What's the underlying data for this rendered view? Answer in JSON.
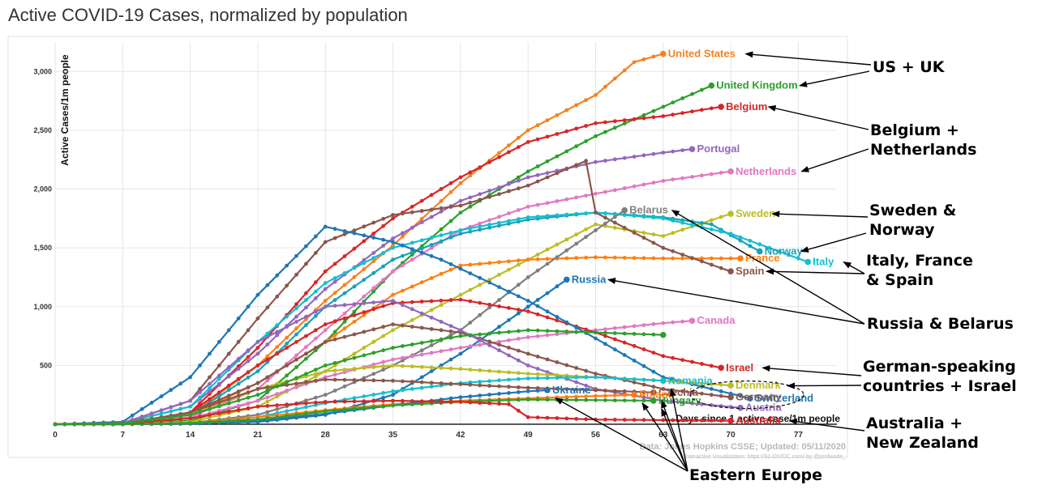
{
  "page": {
    "title": "Active COVID-19 Cases, normalized by population"
  },
  "annotations": {
    "groups": [
      {
        "id": "us-uk",
        "label": "US + UK",
        "targets": [
          "United States",
          "United Kingdom"
        ]
      },
      {
        "id": "belgium-netherlands",
        "label": "Belgium +\nNetherlands",
        "targets": [
          "Belgium",
          "Netherlands"
        ]
      },
      {
        "id": "sweden-norway",
        "label": "Sweden &\nNorway",
        "targets": [
          "Sweden",
          "Norway"
        ]
      },
      {
        "id": "italy-france-spain",
        "label": "Italy, France\n& Spain",
        "targets": [
          "Italy",
          "Spain"
        ]
      },
      {
        "id": "russia-belarus",
        "label": "Russia & Belarus",
        "targets": [
          "Belarus",
          "Russia"
        ]
      },
      {
        "id": "german-speaking",
        "label": "German-speaking\ncountries + Israel",
        "targets": [
          "Israel",
          "German-speaking"
        ]
      },
      {
        "id": "australia-nz",
        "label": "Australia +\nNew Zealand",
        "targets": [
          "Australia"
        ]
      },
      {
        "id": "eastern-europe",
        "label": "Eastern Europe",
        "targets": [
          "Ukraine",
          "Poland",
          "Hungary",
          "Romania",
          "Czechia"
        ]
      }
    ]
  },
  "chart_data": {
    "type": "line",
    "title": "Active COVID-19 Cases, normalized by population",
    "xlabel": "Days since 1 active case/1m people",
    "ylabel": "Active Cases/1m people",
    "xlim": [
      0,
      81
    ],
    "ylim": [
      0,
      3250
    ],
    "xticks": [
      0,
      7,
      14,
      21,
      28,
      35,
      42,
      49,
      56,
      63,
      70,
      77
    ],
    "yticks": [
      500,
      1000,
      1500,
      2000,
      2500,
      3000
    ],
    "ytick_labels": [
      "500",
      "1,000",
      "1,500",
      "2,000",
      "2,500",
      "3,000"
    ],
    "grid": true,
    "credits": [
      "Data: Johns Hopkins CSSE; Updated: 05/11/2020",
      "Interactive Visualization: https://91-DIVOC.com/ by @profwade_"
    ],
    "series": [
      {
        "name": "United States",
        "color": "#f58220",
        "x": [
          0,
          7,
          14,
          21,
          28,
          35,
          42,
          49,
          56,
          60,
          63
        ],
        "y": [
          0,
          10,
          80,
          500,
          1050,
          1520,
          2050,
          2500,
          2800,
          3080,
          3150
        ]
      },
      {
        "name": "United Kingdom",
        "color": "#2ca02c",
        "x": [
          0,
          7,
          14,
          21,
          28,
          35,
          42,
          49,
          56,
          63,
          68
        ],
        "y": [
          0,
          5,
          30,
          200,
          700,
          1300,
          1800,
          2150,
          2450,
          2700,
          2880
        ]
      },
      {
        "name": "Belgium",
        "color": "#d62728",
        "x": [
          0,
          7,
          14,
          21,
          28,
          35,
          42,
          49,
          56,
          63,
          69
        ],
        "y": [
          0,
          5,
          100,
          650,
          1300,
          1750,
          2100,
          2400,
          2560,
          2620,
          2700
        ]
      },
      {
        "name": "Portugal",
        "color": "#9467bd",
        "x": [
          0,
          7,
          14,
          21,
          28,
          35,
          42,
          49,
          56,
          63,
          66
        ],
        "y": [
          0,
          10,
          150,
          600,
          1150,
          1580,
          1900,
          2100,
          2230,
          2310,
          2340
        ]
      },
      {
        "name": "Netherlands",
        "color": "#e377c2",
        "x": [
          0,
          7,
          14,
          21,
          28,
          35,
          42,
          49,
          56,
          63,
          70
        ],
        "y": [
          0,
          5,
          60,
          300,
          800,
          1300,
          1650,
          1850,
          1960,
          2070,
          2150
        ]
      },
      {
        "name": "Sweden",
        "color": "#bcbd22",
        "x": [
          0,
          7,
          14,
          21,
          28,
          35,
          42,
          49,
          56,
          63,
          70
        ],
        "y": [
          0,
          0,
          20,
          150,
          450,
          800,
          1100,
          1400,
          1700,
          1600,
          1790
        ]
      },
      {
        "name": "Norway",
        "color": "#17a2b8",
        "x": [
          0,
          7,
          14,
          21,
          28,
          35,
          42,
          49,
          56,
          63,
          68,
          73
        ],
        "y": [
          0,
          5,
          80,
          450,
          1000,
          1400,
          1620,
          1740,
          1800,
          1760,
          1700,
          1470
        ]
      },
      {
        "name": "Italy",
        "color": "#17becf",
        "x": [
          0,
          7,
          14,
          21,
          28,
          35,
          42,
          49,
          56,
          63,
          70,
          78
        ],
        "y": [
          0,
          10,
          150,
          700,
          1200,
          1500,
          1650,
          1760,
          1800,
          1750,
          1620,
          1380
        ]
      },
      {
        "name": "France",
        "color": "#ff7f0e",
        "x": [
          0,
          7,
          14,
          21,
          28,
          35,
          42,
          49,
          56,
          63,
          71
        ],
        "y": [
          0,
          10,
          80,
          350,
          700,
          1100,
          1350,
          1400,
          1420,
          1410,
          1410
        ]
      },
      {
        "name": "Spain",
        "color": "#8c564b",
        "x": [
          0,
          7,
          14,
          21,
          28,
          35,
          42,
          49,
          55,
          56,
          63,
          70
        ],
        "y": [
          0,
          10,
          200,
          900,
          1550,
          1780,
          1860,
          2030,
          2240,
          1800,
          1500,
          1300
        ]
      },
      {
        "name": "Belarus",
        "color": "#7f7f7f",
        "x": [
          0,
          7,
          14,
          21,
          28,
          35,
          42,
          49,
          56,
          59
        ],
        "y": [
          0,
          0,
          10,
          80,
          250,
          500,
          800,
          1250,
          1650,
          1820
        ]
      },
      {
        "name": "Russia",
        "color": "#1f77b4",
        "x": [
          0,
          7,
          14,
          21,
          28,
          35,
          42,
          49,
          53
        ],
        "y": [
          0,
          0,
          5,
          20,
          80,
          250,
          600,
          1000,
          1230
        ]
      },
      {
        "name": "Canada",
        "color": "#e377c2",
        "x": [
          0,
          7,
          14,
          21,
          28,
          35,
          42,
          49,
          56,
          63,
          66
        ],
        "y": [
          0,
          5,
          50,
          200,
          400,
          550,
          650,
          740,
          800,
          860,
          880
        ]
      },
      {
        "name": "Israel",
        "color": "#d62728",
        "x": [
          0,
          7,
          14,
          21,
          28,
          35,
          42,
          49,
          56,
          63,
          69
        ],
        "y": [
          0,
          5,
          100,
          500,
          850,
          1030,
          1060,
          960,
          780,
          580,
          480
        ]
      },
      {
        "name": "Switzerland",
        "color": "#1f77b4",
        "x": [
          0,
          7,
          14,
          21,
          28,
          35,
          40,
          49,
          56,
          63,
          72
        ],
        "y": [
          0,
          20,
          400,
          1100,
          1680,
          1550,
          1400,
          1050,
          730,
          400,
          220
        ]
      },
      {
        "name": "Germany",
        "color": "#8c564b",
        "x": [
          0,
          7,
          14,
          21,
          28,
          35,
          42,
          49,
          56,
          63,
          70
        ],
        "y": [
          0,
          5,
          100,
          350,
          700,
          850,
          780,
          600,
          430,
          300,
          230
        ]
      },
      {
        "name": "Austria",
        "color": "#9467bd",
        "x": [
          0,
          7,
          14,
          21,
          28,
          35,
          42,
          49,
          56,
          63,
          71
        ],
        "y": [
          0,
          10,
          200,
          700,
          1000,
          1050,
          800,
          500,
          300,
          200,
          140
        ]
      },
      {
        "name": "Denmark",
        "color": "#bcbd22",
        "x": [
          0,
          7,
          14,
          21,
          28,
          35,
          42,
          49,
          56,
          63,
          70
        ],
        "y": [
          0,
          5,
          80,
          300,
          450,
          500,
          470,
          430,
          400,
          370,
          330
        ]
      },
      {
        "name": "Romania",
        "color": "#17becf",
        "x": [
          0,
          7,
          14,
          21,
          28,
          35,
          42,
          49,
          56,
          63
        ],
        "y": [
          0,
          0,
          10,
          60,
          180,
          280,
          350,
          390,
          400,
          370
        ]
      },
      {
        "name": "Czechia",
        "color": "#8c564b",
        "x": [
          0,
          7,
          14,
          21,
          28,
          35,
          42,
          49,
          56,
          62
        ],
        "y": [
          0,
          5,
          100,
          300,
          380,
          370,
          340,
          310,
          290,
          270
        ]
      },
      {
        "name": "Poland",
        "color": "#ff7f0e",
        "x": [
          0,
          7,
          14,
          21,
          28,
          35,
          42,
          49,
          56,
          60
        ],
        "y": [
          0,
          0,
          10,
          60,
          120,
          170,
          200,
          220,
          240,
          250
        ]
      },
      {
        "name": "Ukraine",
        "color": "#1f77b4",
        "x": [
          0,
          7,
          14,
          21,
          28,
          35,
          42,
          49,
          51
        ],
        "y": [
          0,
          0,
          5,
          30,
          90,
          160,
          230,
          280,
          290
        ]
      },
      {
        "name": "Hungary",
        "color": "#2ca02c",
        "x": [
          0,
          7,
          14,
          21,
          28,
          35,
          42,
          49,
          56,
          62
        ],
        "y": [
          0,
          0,
          10,
          40,
          110,
          160,
          190,
          210,
          205,
          200
        ]
      },
      {
        "name": "Australia",
        "color": "#d62728",
        "x": [
          0,
          7,
          14,
          21,
          28,
          35,
          42,
          47,
          49,
          56,
          63,
          70
        ],
        "y": [
          0,
          5,
          50,
          150,
          190,
          200,
          190,
          170,
          60,
          40,
          35,
          30
        ]
      },
      {
        "name": "",
        "color": "#2ca02c",
        "x": [
          0,
          7,
          14,
          21,
          28,
          35,
          42,
          49,
          56,
          63
        ],
        "y": [
          0,
          5,
          80,
          250,
          500,
          650,
          750,
          800,
          780,
          760
        ]
      }
    ]
  }
}
